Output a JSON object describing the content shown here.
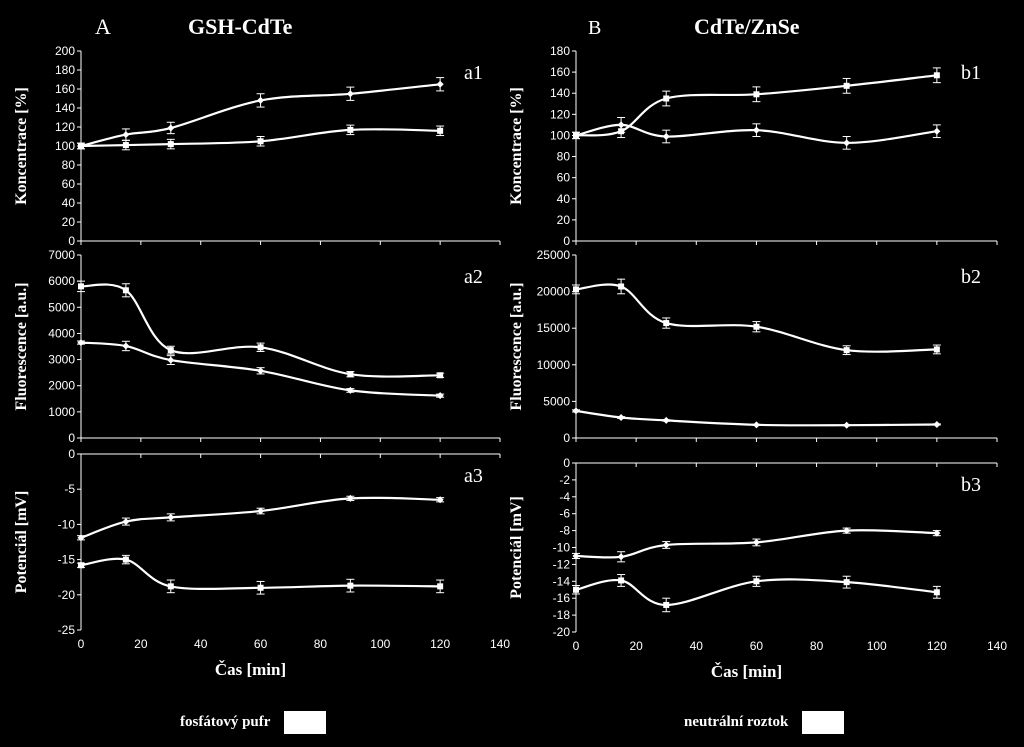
{
  "figure": {
    "left_column_letter": "A",
    "left_column_title": "GSH-CdTe",
    "right_column_letter": "B",
    "right_column_title": "CdTe/ZnSe"
  },
  "legend": {
    "item1": "fosfátový pufr",
    "item2": "neutrální roztok",
    "swatch_color": "#ffffff"
  },
  "colors": {
    "background": "#000000",
    "foreground": "#ffffff"
  },
  "chart_data": [
    {
      "id": "a1",
      "type": "line",
      "panel_label": "a1",
      "xlabel": "",
      "ylabel": "Koncentrace [%]",
      "xlim": [
        0,
        140
      ],
      "xticks": [
        0,
        20,
        40,
        60,
        80,
        100,
        120,
        140
      ],
      "ylim": [
        0,
        200
      ],
      "yticks": [
        0,
        20,
        40,
        60,
        80,
        100,
        120,
        140,
        160,
        180,
        200
      ],
      "x": [
        0,
        15,
        30,
        60,
        90,
        120
      ],
      "series": [
        {
          "name": "fosfátový pufr",
          "marker": "diamond",
          "values": [
            100,
            112,
            119,
            148,
            155,
            165
          ],
          "errors": [
            3,
            6,
            6,
            7,
            7,
            7
          ]
        },
        {
          "name": "neutrální roztok",
          "marker": "square",
          "values": [
            100,
            101,
            102,
            105,
            117,
            116
          ],
          "errors": [
            3,
            5,
            5,
            5,
            5,
            5
          ]
        }
      ]
    },
    {
      "id": "a2",
      "type": "line",
      "panel_label": "a2",
      "xlabel": "",
      "ylabel": "Fluorescence [a.u.]",
      "xlim": [
        0,
        140
      ],
      "xticks": [
        0,
        20,
        40,
        60,
        80,
        100,
        120,
        140
      ],
      "ylim": [
        0,
        7000
      ],
      "yticks": [
        0,
        1000,
        2000,
        3000,
        4000,
        5000,
        6000,
        7000
      ],
      "x": [
        0,
        15,
        30,
        60,
        90,
        120
      ],
      "series": [
        {
          "name": "fosfátový pufr",
          "marker": "diamond",
          "values": [
            3650,
            3520,
            2980,
            2570,
            1820,
            1620
          ],
          "errors": [
            60,
            180,
            170,
            120,
            70,
            60
          ]
        },
        {
          "name": "neutrální roztok",
          "marker": "square",
          "values": [
            5800,
            5650,
            3360,
            3470,
            2440,
            2400
          ],
          "errors": [
            200,
            250,
            150,
            160,
            100,
            80
          ]
        }
      ]
    },
    {
      "id": "a3",
      "type": "line",
      "panel_label": "a3",
      "xlabel": "Čas [min]",
      "ylabel": "Potenciál [mV]",
      "xlim": [
        0,
        140
      ],
      "xticks": [
        0,
        20,
        40,
        60,
        80,
        100,
        120,
        140
      ],
      "ylim": [
        -25,
        0
      ],
      "yticks": [
        -25,
        -20,
        -15,
        -10,
        -5,
        0
      ],
      "x": [
        0,
        15,
        30,
        60,
        90,
        120
      ],
      "series": [
        {
          "name": "fosfátový pufr",
          "marker": "diamond",
          "values": [
            -11.9,
            -9.6,
            -9.0,
            -8.1,
            -6.3,
            -6.5
          ],
          "errors": [
            0.3,
            0.5,
            0.5,
            0.4,
            0.3,
            0.3
          ]
        },
        {
          "name": "neutrální roztok",
          "marker": "square",
          "values": [
            -15.8,
            -15.0,
            -18.8,
            -19.0,
            -18.7,
            -18.8
          ],
          "errors": [
            0.3,
            0.6,
            0.9,
            0.9,
            0.9,
            0.9
          ]
        }
      ]
    },
    {
      "id": "b1",
      "type": "line",
      "panel_label": "b1",
      "xlabel": "",
      "ylabel": "Koncentrace [%]",
      "xlim": [
        0,
        140
      ],
      "xticks": [
        0,
        20,
        40,
        60,
        80,
        100,
        120,
        140
      ],
      "ylim": [
        0,
        180
      ],
      "yticks": [
        0,
        20,
        40,
        60,
        80,
        100,
        120,
        140,
        160,
        180
      ],
      "x": [
        0,
        15,
        30,
        60,
        90,
        120
      ],
      "series": [
        {
          "name": "fosfátový pufr",
          "marker": "diamond",
          "values": [
            100,
            110,
            99,
            105,
            93,
            104
          ],
          "errors": [
            3,
            7,
            6,
            6,
            6,
            6
          ]
        },
        {
          "name": "neutrální roztok",
          "marker": "square",
          "values": [
            100,
            104,
            135,
            139,
            147,
            157
          ],
          "errors": [
            3,
            6,
            7,
            7,
            7,
            7
          ]
        }
      ]
    },
    {
      "id": "b2",
      "type": "line",
      "panel_label": "b2",
      "xlabel": "",
      "ylabel": "Fluorescence [a.u.]",
      "xlim": [
        0,
        140
      ],
      "xticks": [
        0,
        20,
        40,
        60,
        80,
        100,
        120,
        140
      ],
      "ylim": [
        0,
        25000
      ],
      "yticks": [
        0,
        5000,
        10000,
        15000,
        20000,
        25000
      ],
      "x": [
        0,
        15,
        30,
        60,
        90,
        120
      ],
      "series": [
        {
          "name": "fosfátový pufr",
          "marker": "diamond",
          "values": [
            3700,
            2800,
            2400,
            1800,
            1750,
            1850
          ],
          "errors": [
            150,
            120,
            100,
            80,
            80,
            80
          ]
        },
        {
          "name": "neutrální roztok",
          "marker": "square",
          "values": [
            20300,
            20700,
            15700,
            15200,
            12000,
            12100
          ],
          "errors": [
            600,
            1000,
            700,
            700,
            600,
            600
          ]
        }
      ]
    },
    {
      "id": "b3",
      "type": "line",
      "panel_label": "b3",
      "xlabel": "Čas [min]",
      "ylabel": "Potenciál [mV]",
      "xlim": [
        0,
        140
      ],
      "xticks": [
        0,
        20,
        40,
        60,
        80,
        100,
        120,
        140
      ],
      "ylim": [
        -20,
        0
      ],
      "yticks": [
        -20,
        -18,
        -16,
        -14,
        -12,
        -10,
        -8,
        -6,
        -4,
        -2,
        0
      ],
      "x": [
        0,
        15,
        30,
        60,
        90,
        120
      ],
      "series": [
        {
          "name": "fosfátový pufr",
          "marker": "diamond",
          "values": [
            -11.0,
            -11.1,
            -9.7,
            -9.4,
            -8.0,
            -8.3
          ],
          "errors": [
            0.3,
            0.6,
            0.4,
            0.4,
            0.3,
            0.3
          ]
        },
        {
          "name": "neutrální roztok",
          "marker": "square",
          "values": [
            -15.0,
            -13.9,
            -16.8,
            -14.0,
            -14.1,
            -15.3
          ],
          "errors": [
            0.5,
            0.7,
            0.8,
            0.6,
            0.7,
            0.7
          ]
        }
      ]
    }
  ]
}
